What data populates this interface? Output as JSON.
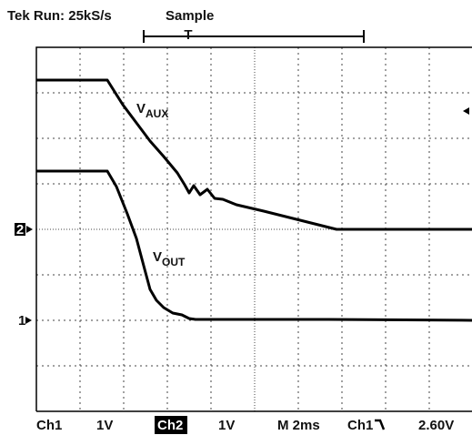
{
  "header": {
    "status": "Tek Run: 25kS/s",
    "mode": "Sample",
    "trigger_marker": "T"
  },
  "traces": [
    {
      "label": "V",
      "subscript": "AUX"
    },
    {
      "label": "V",
      "subscript": "OUT"
    }
  ],
  "markers": {
    "ch2": "2",
    "ch1": "1"
  },
  "footer": {
    "ch1": "Ch1",
    "ch1_scale": "1V",
    "ch2": "Ch2",
    "ch2_scale": "1V",
    "timebase": "M 2ms",
    "trigger_source": "Ch1",
    "trigger_level": "2.60V"
  }
}
